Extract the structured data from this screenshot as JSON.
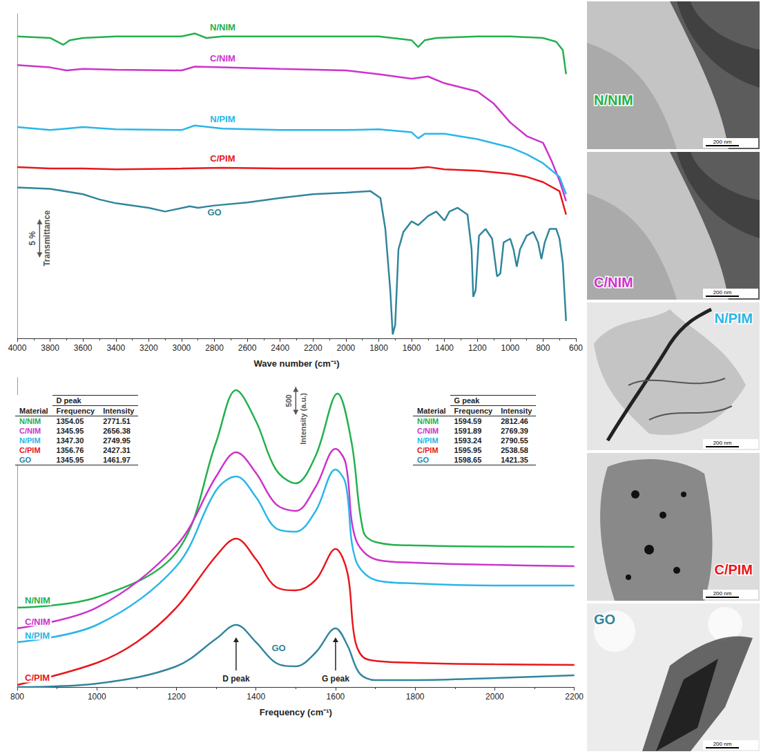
{
  "chart_data": [
    {
      "type": "line",
      "x_label": "Wave number (cm⁻¹)",
      "xlim": [
        4000,
        600
      ],
      "xticks": [
        4000,
        3800,
        3600,
        3400,
        3200,
        3000,
        2800,
        2600,
        2400,
        2200,
        2000,
        1800,
        1600,
        1400,
        1200,
        1000,
        800,
        600
      ],
      "ylim": [
        0,
        43
      ],
      "tick_labels": "x",
      "grid": false,
      "scale_bar": {
        "value": 5,
        "label": "5 %",
        "title": "Transmittance"
      },
      "series": [
        {
          "name": "N/NIM",
          "color": "#22b14c",
          "x": [
            4000,
            3800,
            3720,
            3680,
            3600,
            3400,
            3000,
            2920,
            2850,
            2750,
            2400,
            2000,
            1800,
            1600,
            1560,
            1520,
            1450,
            1200,
            1000,
            800,
            720,
            680,
            660
          ],
          "values": [
            40.0,
            39.8,
            38.9,
            39.5,
            39.8,
            40.0,
            40.0,
            40.4,
            39.8,
            40.0,
            40.0,
            40.0,
            40.0,
            39.5,
            38.6,
            39.5,
            39.8,
            40.0,
            40.0,
            39.8,
            39.3,
            38.2,
            35.0
          ]
        },
        {
          "name": "C/NIM",
          "color": "#cc33cc",
          "x": [
            4000,
            3800,
            3700,
            3600,
            3400,
            3000,
            2920,
            2750,
            2400,
            2000,
            1800,
            1600,
            1500,
            1400,
            1200,
            1100,
            1000,
            900,
            800,
            750,
            700,
            660
          ],
          "values": [
            36.2,
            35.9,
            35.5,
            35.7,
            35.6,
            35.5,
            36.0,
            35.9,
            35.7,
            35.5,
            35.0,
            34.4,
            34.7,
            33.8,
            32.7,
            31.1,
            28.6,
            26.8,
            25.9,
            23.6,
            20.9,
            18.2
          ]
        },
        {
          "name": "N/PIM",
          "color": "#29b6e8",
          "x": [
            4000,
            3800,
            3700,
            3600,
            3400,
            3000,
            2920,
            2750,
            2400,
            2000,
            1800,
            1600,
            1560,
            1520,
            1400,
            1200,
            1000,
            900,
            800,
            700,
            660
          ],
          "values": [
            28.0,
            27.6,
            27.8,
            28.0,
            27.7,
            27.6,
            28.2,
            27.8,
            27.6,
            27.6,
            27.7,
            27.3,
            26.5,
            27.1,
            27.1,
            26.4,
            25.3,
            24.4,
            23.2,
            21.4,
            19.1
          ]
        },
        {
          "name": "C/PIM",
          "color": "#e8161b",
          "x": [
            4000,
            3800,
            3600,
            3400,
            3000,
            2750,
            2400,
            2000,
            1600,
            1500,
            1400,
            1200,
            1000,
            900,
            800,
            700,
            660
          ],
          "values": [
            22.7,
            22.5,
            22.5,
            22.4,
            22.5,
            22.6,
            22.5,
            22.5,
            22.5,
            22.7,
            22.4,
            22.2,
            21.8,
            21.4,
            20.7,
            19.5,
            16.4
          ]
        },
        {
          "name": "GO",
          "color": "#31859c",
          "x": [
            4000,
            3800,
            3600,
            3500,
            3400,
            3200,
            3100,
            2950,
            2900,
            2800,
            2600,
            2400,
            2200,
            2000,
            1850,
            1790,
            1760,
            1730,
            1715,
            1700,
            1680,
            1650,
            1600,
            1560,
            1500,
            1450,
            1400,
            1370,
            1320,
            1260,
            1235,
            1225,
            1210,
            1190,
            1150,
            1110,
            1080,
            1060,
            1040,
            1000,
            980,
            960,
            940,
            900,
            860,
            830,
            810,
            790,
            760,
            720,
            700,
            680,
            660
          ],
          "values": [
            20.0,
            19.8,
            19.1,
            18.4,
            17.9,
            17.3,
            16.8,
            17.5,
            17.3,
            17.6,
            18.0,
            18.6,
            19.1,
            19.3,
            19.5,
            18.6,
            14.5,
            6.4,
            0.5,
            1.8,
            11.8,
            14.1,
            15.5,
            15.0,
            16.2,
            16.8,
            15.6,
            16.8,
            17.3,
            16.4,
            11.8,
            5.5,
            6.4,
            13.6,
            14.5,
            13.2,
            8.2,
            8.6,
            12.7,
            13.2,
            11.8,
            9.5,
            11.8,
            13.6,
            14.1,
            12.7,
            10.5,
            12.7,
            14.5,
            14.5,
            13.2,
            10.0,
            2.3
          ]
        }
      ]
    },
    {
      "type": "line",
      "x_label": "Frequency (cm⁻¹)",
      "xlim": [
        800,
        2200
      ],
      "xticks": [
        800,
        1000,
        1200,
        1400,
        1600,
        1800,
        2000,
        2200
      ],
      "ylim": [
        0,
        5600
      ],
      "tick_labels": "x",
      "grid": false,
      "scale_bar": {
        "value": 500,
        "title": "Intensity (a.u.)"
      },
      "annotations": [
        {
          "text": "D peak",
          "x": 1350
        },
        {
          "text": "G peak",
          "x": 1600
        }
      ],
      "series": [
        {
          "name": "N/NIM",
          "color": "#22b14c",
          "x": [
            800,
            1000,
            1200,
            1300,
            1350,
            1400,
            1450,
            1500,
            1550,
            1605,
            1640,
            1670,
            1700,
            1800,
            2200
          ],
          "values": [
            1438,
            1625,
            2438,
            4438,
            5375,
            4812,
            3938,
            3688,
            4188,
            5312,
            4438,
            2812,
            2625,
            2562,
            2538
          ]
        },
        {
          "name": "C/NIM",
          "color": "#cc33cc",
          "x": [
            800,
            1000,
            1200,
            1300,
            1350,
            1400,
            1450,
            1500,
            1550,
            1600,
            1625,
            1650,
            1700,
            1800,
            2000,
            2200
          ],
          "values": [
            1062,
            1438,
            2562,
            3812,
            4250,
            3875,
            3312,
            3188,
            3625,
            4312,
            4062,
            2688,
            2312,
            2250,
            2212,
            2188
          ]
        },
        {
          "name": "N/PIM",
          "color": "#29b6e8",
          "x": [
            800,
            1000,
            1200,
            1300,
            1350,
            1400,
            1450,
            1500,
            1550,
            1600,
            1625,
            1650,
            1700,
            1800,
            2000,
            2200
          ],
          "values": [
            812,
            1125,
            2188,
            3562,
            3812,
            3438,
            2875,
            2812,
            3188,
            3938,
            3688,
            2312,
            1938,
            1875,
            1838,
            1838
          ]
        },
        {
          "name": "C/PIM",
          "color": "#e8161b",
          "x": [
            800,
            1000,
            1100,
            1200,
            1300,
            1350,
            1400,
            1450,
            1500,
            1550,
            1600,
            1630,
            1650,
            1680,
            1800,
            2000,
            2200
          ],
          "values": [
            38,
            438,
            812,
            1438,
            2375,
            2688,
            2312,
            1812,
            1750,
            1938,
            2500,
            2062,
            812,
            500,
            438,
            412,
            400
          ]
        },
        {
          "name": "GO",
          "color": "#31859c",
          "x": [
            800,
            1000,
            1200,
            1300,
            1350,
            1400,
            1450,
            1500,
            1550,
            1600,
            1630,
            1660,
            1700,
            1800,
            2000,
            2200
          ],
          "values": [
            0,
            62,
            375,
            875,
            1125,
            812,
            438,
            375,
            625,
            1062,
            750,
            250,
            125,
            125,
            162,
            212
          ]
        }
      ],
      "tables": [
        {
          "title": "D peak",
          "columns": [
            "Material",
            "Frequency",
            "Intensity"
          ],
          "rows": [
            [
              "N/NIM",
              1354.05,
              2771.51
            ],
            [
              "C/NIM",
              1345.95,
              2656.38
            ],
            [
              "N/PIM",
              {
                "value": 1347.3,
                "label": "1347.30"
              },
              2749.95
            ],
            [
              "C/PIM",
              1356.76,
              2427.31
            ],
            [
              "GO",
              1345.95,
              1461.97
            ]
          ]
        },
        {
          "title": "G peak",
          "columns": [
            "Material",
            "Frequency",
            "Intensity"
          ],
          "rows": [
            [
              "N/NIM",
              1594.59,
              2812.46
            ],
            [
              "C/NIM",
              1591.89,
              2769.39
            ],
            [
              "N/PIM",
              1593.24,
              2790.55
            ],
            [
              "C/PIM",
              1595.95,
              2538.58
            ],
            [
              "GO",
              1598.65,
              1421.35
            ]
          ]
        }
      ]
    }
  ],
  "tem_images": [
    {
      "label": "N/NIM",
      "color": "#22b14c",
      "scale_bar": "200 nm"
    },
    {
      "label": "C/NIM",
      "color": "#cc33cc",
      "scale_bar": "200 nm"
    },
    {
      "label": "N/PIM",
      "color": "#29b6e8",
      "scale_bar": "200 nm"
    },
    {
      "label": "C/PIM",
      "color": "#e8161b",
      "scale_bar": "200 nm"
    },
    {
      "label": "GO",
      "color": "#31859c",
      "scale_bar": "200 nm"
    }
  ]
}
